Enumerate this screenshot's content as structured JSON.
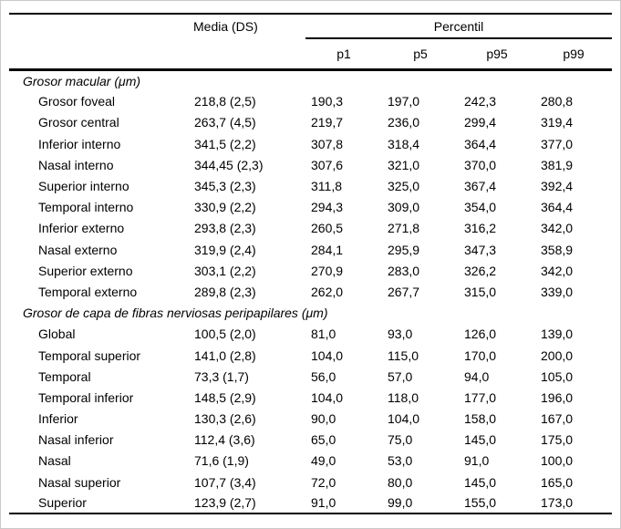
{
  "table": {
    "header": {
      "media_label": "Media (DS)",
      "percentil_label": "Percentil",
      "percentile_columns": [
        "p1",
        "p5",
        "p95",
        "p99"
      ]
    },
    "sections": [
      {
        "title": "Grosor macular (μm)",
        "rows": [
          {
            "label": "Grosor foveal",
            "values": [
              "218,8 (2,5)",
              "190,3",
              "197,0",
              "242,3",
              "280,8"
            ]
          },
          {
            "label": "Grosor central",
            "values": [
              "263,7 (4,5)",
              "219,7",
              "236,0",
              "299,4",
              "319,4"
            ]
          },
          {
            "label": "Inferior interno",
            "values": [
              "341,5 (2,2)",
              "307,8",
              "318,4",
              "364,4",
              "377,0"
            ]
          },
          {
            "label": "Nasal interno",
            "values": [
              "344,45 (2,3)",
              "307,6",
              "321,0",
              "370,0",
              "381,9"
            ]
          },
          {
            "label": "Superior interno",
            "values": [
              "345,3 (2,3)",
              "311,8",
              "325,0",
              "367,4",
              "392,4"
            ]
          },
          {
            "label": "Temporal interno",
            "values": [
              "330,9 (2,2)",
              "294,3",
              "309,0",
              "354,0",
              "364,4"
            ]
          },
          {
            "label": "Inferior externo",
            "values": [
              "293,8 (2,3)",
              "260,5",
              "271,8",
              "316,2",
              "342,0"
            ]
          },
          {
            "label": "Nasal externo",
            "values": [
              "319,9 (2,4)",
              "284,1",
              "295,9",
              "347,3",
              "358,9"
            ]
          },
          {
            "label": "Superior externo",
            "values": [
              "303,1 (2,2)",
              "270,9",
              "283,0",
              "326,2",
              "342,0"
            ]
          },
          {
            "label": "Temporal externo",
            "values": [
              "289,8 (2,3)",
              "262,0",
              "267,7",
              "315,0",
              "339,0"
            ]
          }
        ]
      },
      {
        "title": "Grosor de capa de fibras nerviosas peripapilares (μm)",
        "rows": [
          {
            "label": "Global",
            "values": [
              "100,5 (2,0)",
              "81,0",
              "93,0",
              "126,0",
              "139,0"
            ]
          },
          {
            "label": "Temporal superior",
            "values": [
              "141,0 (2,8)",
              "104,0",
              "115,0",
              "170,0",
              "200,0"
            ]
          },
          {
            "label": "Temporal",
            "values": [
              "73,3 (1,7)",
              "56,0",
              "57,0",
              "94,0",
              "105,0"
            ]
          },
          {
            "label": "Temporal inferior",
            "values": [
              "148,5 (2,9)",
              "104,0",
              "118,0",
              "177,0",
              "196,0"
            ]
          },
          {
            "label": "Inferior",
            "values": [
              "130,3 (2,6)",
              "90,0",
              "104,0",
              "158,0",
              "167,0"
            ]
          },
          {
            "label": "Nasal inferior",
            "values": [
              "112,4 (3,6)",
              "65,0",
              "75,0",
              "145,0",
              "175,0"
            ]
          },
          {
            "label": "Nasal",
            "values": [
              "71,6 (1,9)",
              "49,0",
              "53,0",
              "91,0",
              "100,0"
            ]
          },
          {
            "label": "Nasal superior",
            "values": [
              "107,7 (3,4)",
              "72,0",
              "80,0",
              "145,0",
              "165,0"
            ]
          },
          {
            "label": "Superior",
            "values": [
              "123,9 (2,7)",
              "91,0",
              "99,0",
              "155,0",
              "173,0"
            ]
          }
        ]
      }
    ]
  }
}
